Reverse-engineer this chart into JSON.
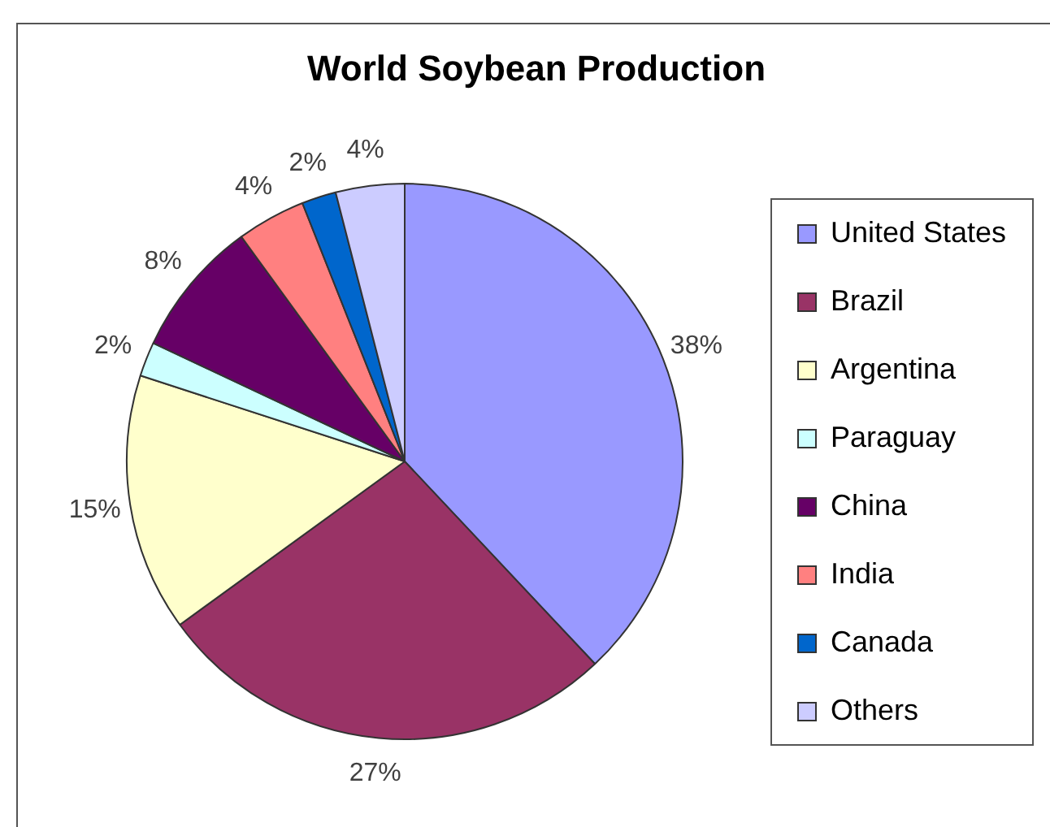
{
  "chart_data": {
    "type": "pie",
    "title": "World Soybean Production",
    "categories": [
      "United States",
      "Brazil",
      "Argentina",
      "Paraguay",
      "China",
      "India",
      "Canada",
      "Others"
    ],
    "values": [
      38,
      27,
      15,
      2,
      8,
      4,
      2,
      4
    ],
    "colors": [
      "#9999ff",
      "#993366",
      "#ffffcc",
      "#ccffff",
      "#660066",
      "#ff8080",
      "#0066cc",
      "#ccccff"
    ],
    "value_labels": [
      "38%",
      "27%",
      "15%",
      "2%",
      "8%",
      "4%",
      "2%",
      "4%"
    ],
    "legend": "right"
  }
}
